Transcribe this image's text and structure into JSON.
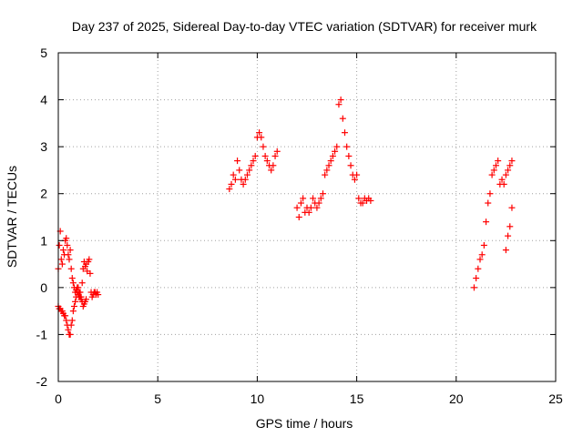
{
  "chart_data": {
    "type": "scatter",
    "title": "Day 237 of 2025, Sidereal Day-to-day VTEC variation (SDTVAR) for receiver murk",
    "xlabel": "GPS time / hours",
    "ylabel": "SDTVAR / TECUs",
    "xlim": [
      0,
      25
    ],
    "ylim": [
      -2,
      5
    ],
    "x_ticks": [
      0,
      5,
      10,
      15,
      20,
      25
    ],
    "y_ticks": [
      -2,
      -1,
      0,
      1,
      2,
      3,
      4,
      5
    ],
    "grid": true,
    "marker": "+",
    "series_color": "#ff0000",
    "series": [
      {
        "name": "SDTVAR",
        "x": [
          0.0,
          0.05,
          0.1,
          0.15,
          0.2,
          0.25,
          0.3,
          0.35,
          0.4,
          0.45,
          0.5,
          0.55,
          0.6,
          0.65,
          0.7,
          0.75,
          0.8,
          0.85,
          0.9,
          0.95,
          1.0,
          1.05,
          1.1,
          1.15,
          1.2,
          1.25,
          1.3,
          1.35,
          1.4,
          1.45,
          1.5,
          1.55,
          1.6,
          1.65,
          1.7,
          1.75,
          1.8,
          1.85,
          1.9,
          1.95,
          2.0,
          0.0,
          0.05,
          0.1,
          0.15,
          0.2,
          0.25,
          0.3,
          0.35,
          0.4,
          0.45,
          0.5,
          0.55,
          0.6,
          0.65,
          0.7,
          0.75,
          0.8,
          0.85,
          0.9,
          0.95,
          1.0,
          1.05,
          1.1,
          1.15,
          1.2,
          1.25,
          1.3,
          1.35,
          1.4,
          8.6,
          8.7,
          8.8,
          8.9,
          9.0,
          9.1,
          9.2,
          9.3,
          9.4,
          9.5,
          9.6,
          9.7,
          9.8,
          9.9,
          10.0,
          10.1,
          10.2,
          10.3,
          10.4,
          10.5,
          10.6,
          10.7,
          10.8,
          10.9,
          11.0,
          12.0,
          12.1,
          12.2,
          12.3,
          12.4,
          12.5,
          12.6,
          12.7,
          12.8,
          12.9,
          13.0,
          13.1,
          13.2,
          13.3,
          13.4,
          13.5,
          13.6,
          13.7,
          13.8,
          13.9,
          14.0,
          14.1,
          14.2,
          14.3,
          14.4,
          14.5,
          14.6,
          14.7,
          14.8,
          14.9,
          15.0,
          15.1,
          15.2,
          15.3,
          15.4,
          15.5,
          15.6,
          15.7,
          20.9,
          21.0,
          21.1,
          21.2,
          21.3,
          21.4,
          21.5,
          21.6,
          21.7,
          21.8,
          21.9,
          22.0,
          22.1,
          22.2,
          22.3,
          22.4,
          22.5,
          22.6,
          22.7,
          22.8,
          22.5,
          22.6,
          22.7,
          22.8
        ],
        "y": [
          0.4,
          0.9,
          1.2,
          0.6,
          0.5,
          0.8,
          0.7,
          1.0,
          1.05,
          0.9,
          0.7,
          0.6,
          0.8,
          0.4,
          0.2,
          0.1,
          0.0,
          -0.1,
          -0.05,
          0.0,
          -0.15,
          -0.2,
          -0.1,
          -0.2,
          0.1,
          0.4,
          0.55,
          0.45,
          0.5,
          0.35,
          0.55,
          0.6,
          0.3,
          -0.1,
          -0.2,
          -0.15,
          -0.1,
          -0.1,
          -0.15,
          -0.1,
          -0.15,
          -0.4,
          -0.45,
          -0.45,
          -0.5,
          -0.5,
          -0.55,
          -0.6,
          -0.6,
          -0.7,
          -0.8,
          -0.9,
          -1.0,
          -1.0,
          -0.8,
          -0.7,
          -0.5,
          -0.4,
          -0.3,
          -0.2,
          -0.1,
          0.0,
          -0.1,
          -0.2,
          -0.25,
          -0.3,
          -0.4,
          -0.35,
          -0.3,
          -0.25,
          2.1,
          2.2,
          2.4,
          2.3,
          2.7,
          2.5,
          2.3,
          2.2,
          2.3,
          2.4,
          2.5,
          2.6,
          2.7,
          2.8,
          3.2,
          3.3,
          3.2,
          3.0,
          2.8,
          2.7,
          2.6,
          2.5,
          2.6,
          2.8,
          2.9,
          1.7,
          1.5,
          1.8,
          1.9,
          1.6,
          1.7,
          1.6,
          1.7,
          1.9,
          1.8,
          1.7,
          1.8,
          1.9,
          2.0,
          2.4,
          2.5,
          2.6,
          2.7,
          2.8,
          2.9,
          3.0,
          3.9,
          4.0,
          3.6,
          3.3,
          3.0,
          2.8,
          2.6,
          2.4,
          2.3,
          2.4,
          1.9,
          1.8,
          1.8,
          1.9,
          1.85,
          1.9,
          1.85,
          0.0,
          0.2,
          0.4,
          0.6,
          0.7,
          0.9,
          1.4,
          1.8,
          2.0,
          2.4,
          2.5,
          2.6,
          2.7,
          2.2,
          2.3,
          2.2,
          2.4,
          2.5,
          2.6,
          2.7,
          0.8,
          1.1,
          1.3,
          1.7
        ]
      }
    ]
  }
}
